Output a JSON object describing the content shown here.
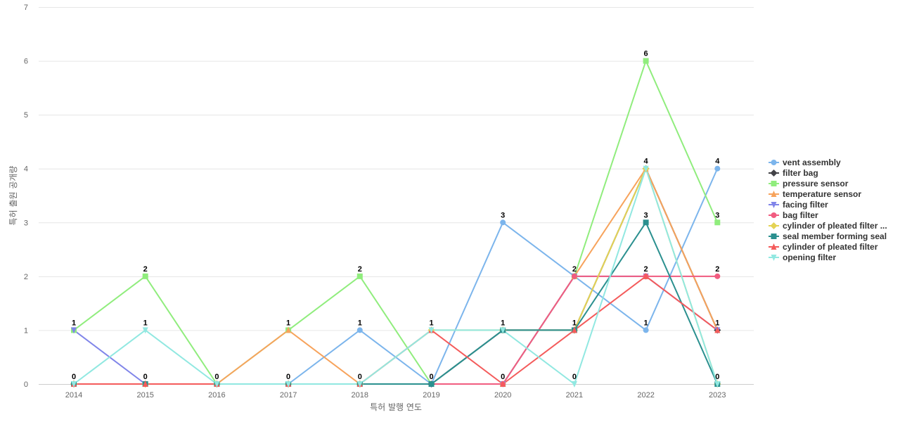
{
  "chart_data": {
    "type": "line",
    "title": "",
    "xlabel": "특허 발행 연도",
    "ylabel": "특허 출원 공개량",
    "categories": [
      "2014",
      "2015",
      "2016",
      "2017",
      "2018",
      "2019",
      "2020",
      "2021",
      "2022",
      "2023"
    ],
    "yticks": [
      "0",
      "1",
      "2",
      "3",
      "4",
      "5",
      "6",
      "7"
    ],
    "ylim": [
      0,
      7
    ],
    "grid": true,
    "legend_position": "right",
    "series": [
      {
        "name": "vent assembly",
        "color": "#7cb5ec",
        "marker": "circle",
        "values": [
          0,
          0,
          0,
          0,
          1,
          0,
          3,
          2,
          1,
          4
        ]
      },
      {
        "name": "filter bag",
        "color": "#434348",
        "marker": "diamond",
        "values": [
          0,
          0,
          0,
          0,
          0,
          0,
          1,
          1,
          4,
          1
        ]
      },
      {
        "name": "pressure sensor",
        "color": "#90ed7d",
        "marker": "square",
        "values": [
          1,
          2,
          0,
          1,
          2,
          0,
          0,
          2,
          6,
          3
        ]
      },
      {
        "name": "temperature sensor",
        "color": "#f7a35c",
        "marker": "triangle",
        "values": [
          0,
          0,
          0,
          1,
          0,
          0,
          0,
          2,
          4,
          1
        ]
      },
      {
        "name": "facing filter",
        "color": "#8085e9",
        "marker": "triangle-down",
        "values": [
          1,
          0,
          0,
          0,
          0,
          0,
          0,
          2,
          2,
          1
        ]
      },
      {
        "name": "bag filter",
        "color": "#f15c80",
        "marker": "circle",
        "values": [
          0,
          0,
          0,
          0,
          0,
          0,
          0,
          2,
          2,
          2
        ]
      },
      {
        "name": "cylinder of pleated filter ...",
        "color": "#e4d354",
        "marker": "diamond",
        "values": [
          0,
          0,
          0,
          0,
          0,
          1,
          1,
          1,
          4,
          0
        ]
      },
      {
        "name": "seal member forming seal",
        "color": "#2b908f",
        "marker": "square",
        "values": [
          0,
          0,
          0,
          0,
          0,
          0,
          1,
          1,
          3,
          0
        ]
      },
      {
        "name": "cylinder of pleated filter",
        "color": "#f45b5b",
        "marker": "triangle",
        "values": [
          0,
          0,
          0,
          0,
          0,
          1,
          0,
          1,
          2,
          1
        ]
      },
      {
        "name": "opening filter",
        "color": "#91e8e1",
        "marker": "triangle-down",
        "values": [
          0,
          1,
          0,
          0,
          0,
          1,
          1,
          0,
          4,
          0
        ]
      }
    ],
    "data_labels": [
      {
        "category": "2014",
        "values": [
          "1",
          "0"
        ]
      },
      {
        "category": "2015",
        "values": [
          "2",
          "1",
          "0"
        ]
      },
      {
        "category": "2016",
        "values": [
          "0"
        ]
      },
      {
        "category": "2017",
        "values": [
          "1",
          "0"
        ]
      },
      {
        "category": "2018",
        "values": [
          "2",
          "1",
          "0"
        ]
      },
      {
        "category": "2019",
        "values": [
          "1",
          "0"
        ]
      },
      {
        "category": "2020",
        "values": [
          "3",
          "1",
          "0"
        ]
      },
      {
        "category": "2021",
        "values": [
          "2",
          "1",
          "0"
        ]
      },
      {
        "category": "2022",
        "values": [
          "6",
          "4",
          "3",
          "2",
          "1"
        ]
      },
      {
        "category": "2023",
        "values": [
          "4",
          "3",
          "2",
          "1",
          "0"
        ]
      }
    ]
  }
}
